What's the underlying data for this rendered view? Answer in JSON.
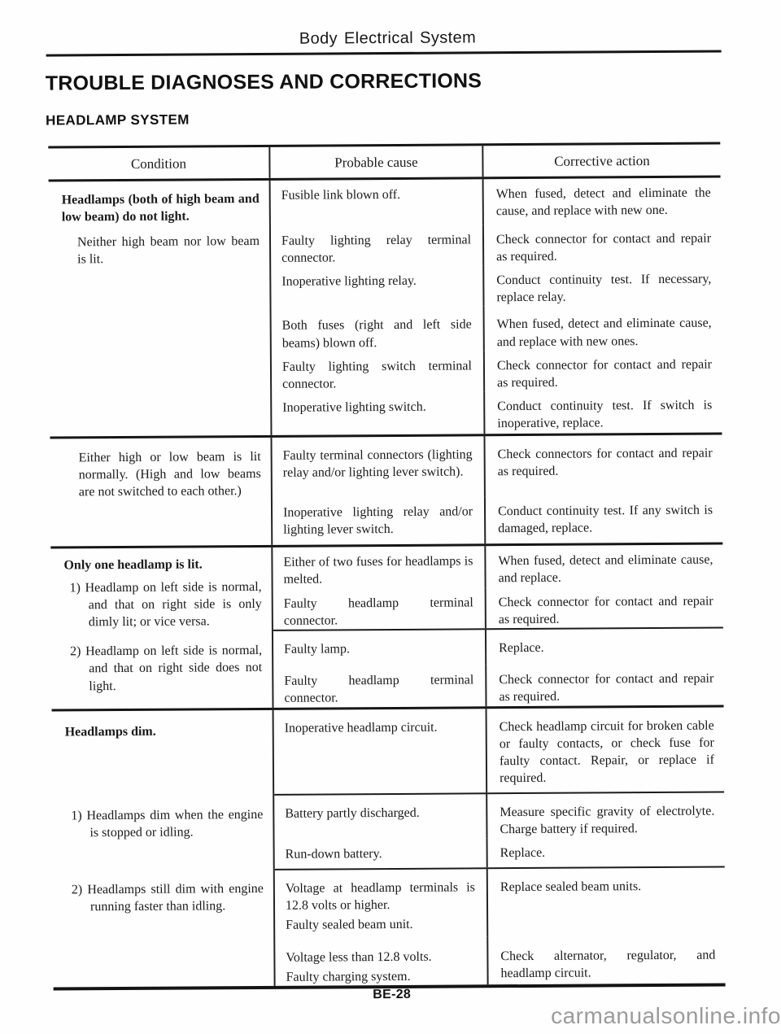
{
  "page": {
    "header_title": "Body Electrical System",
    "title": "TROUBLE DIAGNOSES AND CORRECTIONS",
    "subtitle": "HEADLAMP SYSTEM",
    "page_number": "BE-28",
    "watermark": "carmanualsonline.info"
  },
  "colors": {
    "ink": "#1a1a1a",
    "watermark_gray": "#9b9b9b",
    "paper": "#fefefe"
  },
  "table": {
    "headers": {
      "condition": "Condition",
      "cause": "Probable cause",
      "action": "Corrective action"
    },
    "group1": {
      "condition_main": "Headlamps (both of high beam and low beam) do not light.",
      "condition_sub": "Neither high beam nor low beam is lit.",
      "rows": [
        {
          "cause": "Fusible link blown off.",
          "action": "When fused, detect and eliminate the cause, and replace with new one."
        },
        {
          "cause": "Faulty lighting relay terminal connector.",
          "action": "Check connector for contact and repair as required."
        },
        {
          "cause": "Inoperative lighting relay.",
          "action": "Conduct continuity test. If necessary, replace relay."
        },
        {
          "cause": "Both fuses (right and left side beams) blown off.",
          "action": "When fused, detect and eliminate cause, and replace with new ones."
        },
        {
          "cause": "Faulty lighting switch terminal connector.",
          "action": "Check connector for contact and repair as required."
        },
        {
          "cause": "Inoperative lighting switch.",
          "action": "Conduct continuity test. If switch is inoperative, replace."
        }
      ]
    },
    "group2": {
      "condition_sub": "Either high or low beam is lit normally. (High and low beams are not switched to each other.)",
      "rows": [
        {
          "cause": "Faulty terminal connectors (lighting relay and/or lighting lever switch).",
          "action": "Check connectors for contact and repair as required."
        },
        {
          "cause": "Inoperative lighting relay and/or lighting lever switch.",
          "action": "Conduct continuity test. If any switch is damaged, replace."
        }
      ]
    },
    "group3": {
      "condition_main": "Only one headlamp is lit.",
      "condition_sub1": "1) Headlamp on left side is normal, and that on right side is only dimly lit; or vice versa.",
      "condition_sub2": "2) Headlamp on left side is normal, and that on right side does not light.",
      "rows_a": [
        {
          "cause": "Either of two fuses for headlamps is melted.",
          "action": "When fused, detect and eliminate cause, and replace."
        },
        {
          "cause": "Faulty headlamp terminal connector.",
          "action": "Check connector for contact and repair as required."
        }
      ],
      "rows_b": [
        {
          "cause": "Faulty lamp.",
          "action": "Replace."
        },
        {
          "cause": "Faulty headlamp terminal connector.",
          "action": "Check connector for contact and repair as required."
        }
      ]
    },
    "group4": {
      "condition_main": "Headlamps dim.",
      "condition_sub1": "1) Headlamps dim when the engine is stopped or idling.",
      "condition_sub2": "2) Headlamps still dim with engine running faster than idling.",
      "row1": {
        "cause": "Inoperative headlamp circuit.",
        "action": "Check headlamp circuit for broken cable or faulty contacts, or check fuse for faulty contact. Repair, or replace if required."
      },
      "row2": {
        "cause": "Battery partly discharged.",
        "action": "Measure specific gravity of electrolyte. Charge battery if required."
      },
      "row3": {
        "cause": "Run-down battery.",
        "action": "Replace."
      },
      "row4": {
        "cause1": "Voltage at headlamp terminals is 12.8 volts or higher.",
        "cause2": "Faulty sealed beam unit.",
        "action": "Replace sealed beam units."
      },
      "row5": {
        "cause1": "Voltage less than 12.8 volts.",
        "cause2": "Faulty charging system.",
        "action": "Check alternator, regulator, and headlamp circuit."
      }
    }
  }
}
